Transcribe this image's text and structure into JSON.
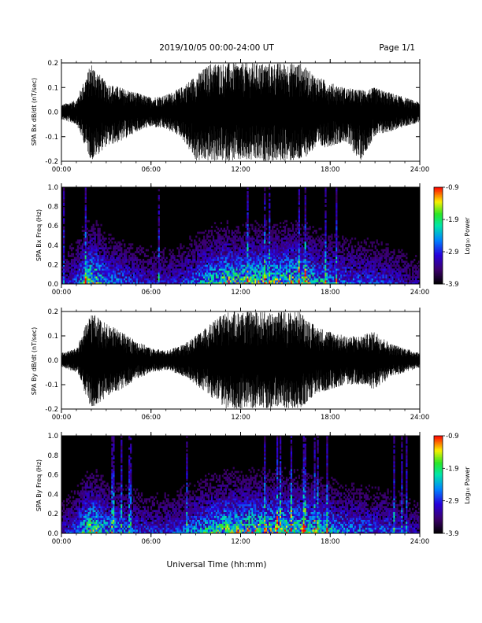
{
  "header": {
    "date_range": "2019/10/05  00:00-24:00 UT",
    "page": "Page 1/1"
  },
  "xlabel": "Universal Time (hh:mm)",
  "colors": {
    "waveform": "#000000",
    "spectrogram_bg": "#000000",
    "frame": "#000000"
  },
  "chart_data": [
    {
      "type": "line",
      "title": "",
      "ylabel": "SPA Bx dB/dt (nT/sec)",
      "ylim": [
        -0.2,
        0.2
      ],
      "yticks": [
        "0.2",
        "0.1",
        "0.0",
        "-0.1",
        "-0.2"
      ],
      "xlim": [
        "00:00",
        "24:00"
      ],
      "xticks": [
        "00:00",
        "06:00",
        "12:00",
        "18:00",
        "24:00"
      ],
      "series": [
        {
          "x": [
            "00:00",
            "01:00",
            "02:00",
            "03:00",
            "04:00",
            "05:00",
            "06:00",
            "07:00",
            "08:00",
            "09:00",
            "10:00",
            "11:00",
            "12:00",
            "13:00",
            "14:00",
            "15:00",
            "16:00",
            "17:00",
            "18:00",
            "19:00",
            "20:00",
            "21:00",
            "22:00",
            "23:00",
            "24:00"
          ],
          "y_max": [
            0.03,
            0.05,
            0.2,
            0.12,
            0.1,
            0.08,
            0.06,
            0.07,
            0.1,
            0.15,
            0.2,
            0.2,
            0.2,
            0.2,
            0.2,
            0.2,
            0.2,
            0.15,
            0.12,
            0.1,
            0.09,
            0.1,
            0.08,
            0.06,
            0.04
          ],
          "y_min": [
            -0.03,
            -0.05,
            -0.2,
            -0.14,
            -0.12,
            -0.08,
            -0.06,
            -0.07,
            -0.1,
            -0.2,
            -0.2,
            -0.2,
            -0.2,
            -0.2,
            -0.2,
            -0.2,
            -0.2,
            -0.15,
            -0.14,
            -0.12,
            -0.2,
            -0.1,
            -0.08,
            -0.06,
            -0.04
          ]
        }
      ]
    },
    {
      "type": "heatmap",
      "title": "",
      "ylabel": "SPA Bx Freq (Hz)",
      "ylim": [
        0.0,
        1.0
      ],
      "yticks": [
        "1.0",
        "0.8",
        "0.6",
        "0.4",
        "0.2",
        "0.0"
      ],
      "xlim": [
        "00:00",
        "24:00"
      ],
      "xticks": [
        "00:00",
        "06:00",
        "12:00",
        "18:00",
        "24:00"
      ],
      "colorbar": {
        "label": "Log₁₀ Power",
        "range": [
          -3.9,
          -0.9
        ],
        "ticks": [
          "-0.9",
          "-1.9",
          "-2.9",
          "-3.9"
        ]
      },
      "activity_profile": {
        "hours": [
          0,
          1,
          2,
          3,
          4,
          5,
          6,
          7,
          8,
          9,
          10,
          11,
          12,
          13,
          14,
          15,
          16,
          17,
          18,
          19,
          20,
          21,
          22,
          23,
          24
        ],
        "power_scale": [
          0.25,
          0.45,
          0.95,
          0.6,
          0.5,
          0.4,
          0.35,
          0.35,
          0.4,
          0.55,
          0.7,
          0.85,
          0.8,
          0.85,
          0.8,
          0.9,
          0.85,
          0.7,
          0.6,
          0.5,
          0.45,
          0.45,
          0.4,
          0.3,
          0.25
        ]
      }
    },
    {
      "type": "line",
      "title": "",
      "ylabel": "SPA By dB/dt (nT/sec)",
      "ylim": [
        -0.2,
        0.2
      ],
      "yticks": [
        "0.2",
        "0.1",
        "0.0",
        "-0.1",
        "-0.2"
      ],
      "xlim": [
        "00:00",
        "24:00"
      ],
      "xticks": [
        "00:00",
        "06:00",
        "12:00",
        "18:00",
        "24:00"
      ],
      "series": [
        {
          "x": [
            "00:00",
            "01:00",
            "02:00",
            "03:00",
            "04:00",
            "05:00",
            "06:00",
            "07:00",
            "08:00",
            "09:00",
            "10:00",
            "11:00",
            "12:00",
            "13:00",
            "14:00",
            "15:00",
            "16:00",
            "17:00",
            "18:00",
            "19:00",
            "20:00",
            "21:00",
            "22:00",
            "23:00",
            "24:00"
          ],
          "y_max": [
            0.03,
            0.05,
            0.2,
            0.15,
            0.12,
            0.08,
            0.05,
            0.04,
            0.06,
            0.1,
            0.15,
            0.2,
            0.2,
            0.2,
            0.2,
            0.2,
            0.2,
            0.14,
            0.12,
            0.1,
            0.1,
            0.12,
            0.07,
            0.05,
            0.03
          ],
          "y_min": [
            -0.03,
            -0.05,
            -0.2,
            -0.15,
            -0.12,
            -0.08,
            -0.05,
            -0.04,
            -0.06,
            -0.1,
            -0.15,
            -0.2,
            -0.2,
            -0.2,
            -0.2,
            -0.2,
            -0.2,
            -0.14,
            -0.12,
            -0.1,
            -0.1,
            -0.12,
            -0.07,
            -0.05,
            -0.03
          ]
        }
      ]
    },
    {
      "type": "heatmap",
      "title": "",
      "ylabel": "SPA By Freq (Hz)",
      "ylim": [
        0.0,
        1.0
      ],
      "yticks": [
        "1.0",
        "0.8",
        "0.6",
        "0.4",
        "0.2",
        "0.0"
      ],
      "xlim": [
        "00:00",
        "24:00"
      ],
      "xticks": [
        "00:00",
        "06:00",
        "12:00",
        "18:00",
        "24:00"
      ],
      "colorbar": {
        "label": "Log₁₀ Power",
        "range": [
          -3.9,
          -0.9
        ],
        "ticks": [
          "-0.9",
          "-1.9",
          "-2.9",
          "-3.9"
        ]
      },
      "activity_profile": {
        "hours": [
          0,
          1,
          2,
          3,
          4,
          5,
          6,
          7,
          8,
          9,
          10,
          11,
          12,
          13,
          14,
          15,
          16,
          17,
          18,
          19,
          20,
          21,
          22,
          23,
          24
        ],
        "power_scale": [
          0.3,
          0.5,
          0.95,
          0.65,
          0.55,
          0.45,
          0.4,
          0.4,
          0.45,
          0.6,
          0.75,
          0.85,
          0.85,
          0.9,
          0.85,
          0.9,
          0.85,
          0.75,
          0.65,
          0.55,
          0.5,
          0.5,
          0.45,
          0.35,
          0.3
        ]
      }
    }
  ]
}
